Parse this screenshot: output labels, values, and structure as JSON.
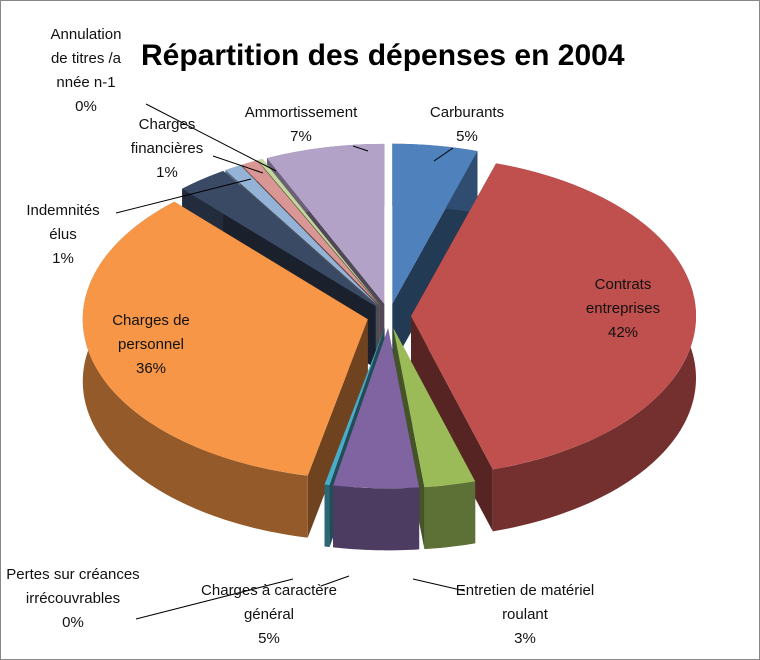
{
  "chart_data": {
    "type": "pie3d",
    "title": "Répartition des dépenses en 2004",
    "categories": [
      "Carburants",
      "Contrats entreprises",
      "Entretien de matériel roulant",
      "Charges à caractère général",
      "Pertes sur créances irrécouvrables",
      "Charges de personnel",
      null,
      "Indemnités élus",
      "Charges financières",
      "Annulation de titres /année n-1",
      "Ammortissement"
    ],
    "values": [
      5,
      42,
      3,
      5,
      0.3,
      36,
      3,
      1,
      1,
      0.3,
      7
    ],
    "value_labels": [
      "5%",
      "42%",
      "3%",
      "5%",
      "0%",
      "36%",
      null,
      "1%",
      "1%",
      "0%",
      "7%"
    ],
    "colors": [
      "#4f81bd",
      "#c0504d",
      "#9bbb59",
      "#8064a2",
      "#4bacc6",
      "#f79646",
      "#3b4a64",
      "#95b3d7",
      "#d99694",
      "#c3d69b",
      "#b3a2c7"
    ]
  }
}
